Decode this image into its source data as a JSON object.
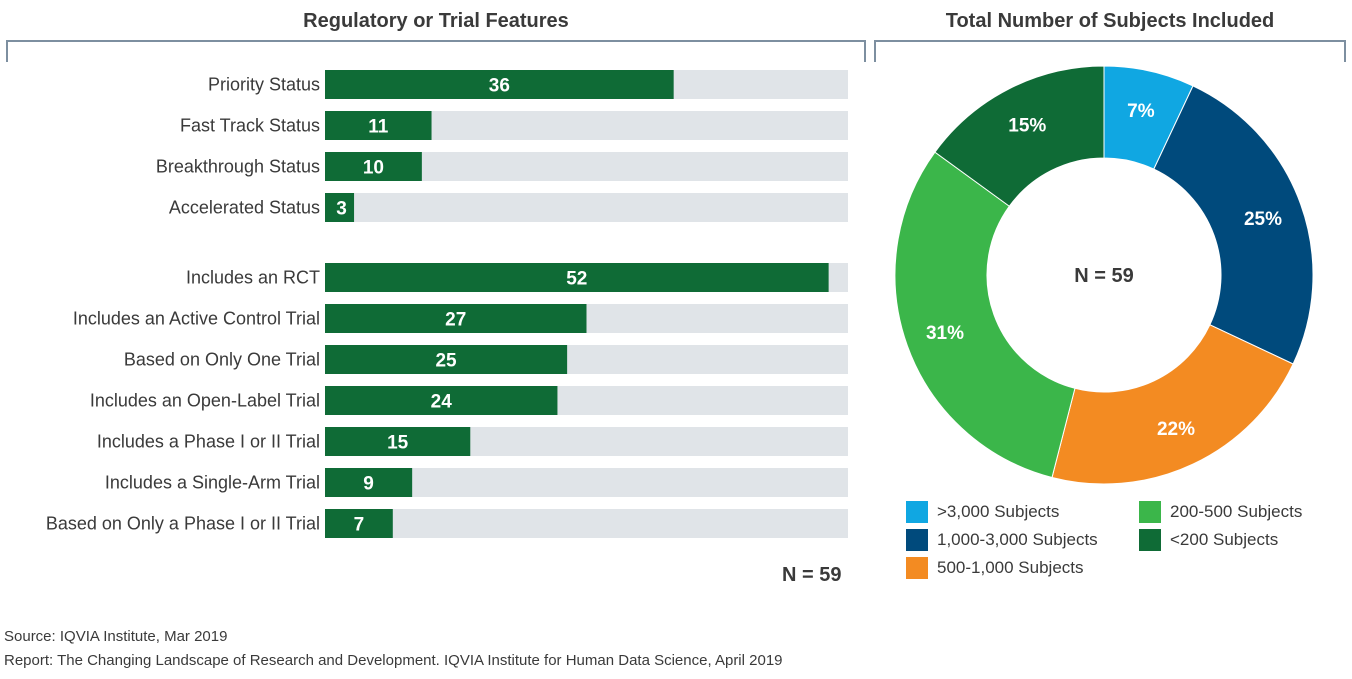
{
  "chart_data": [
    {
      "type": "bar",
      "title": "Regulatory or Trial Features",
      "categories": [
        "Priority Status",
        "Fast Track Status",
        "Breakthrough Status",
        "Accelerated Status",
        "Includes an RCT",
        "Includes an Active Control Trial",
        "Based on Only One Trial",
        "Includes an Open-Label Trial",
        "Includes a Phase I or II Trial",
        "Includes a Single-Arm Trial",
        "Based on Only a Phase I or II Trial"
      ],
      "values": [
        36,
        11,
        10,
        3,
        52,
        27,
        25,
        24,
        15,
        9,
        7
      ],
      "xlim": [
        0,
        54
      ],
      "note": "N = 59",
      "colors": {
        "bar": "#0f6b36",
        "track": "#e0e4e8",
        "label": "#ffffff"
      }
    },
    {
      "type": "pie",
      "title": "Total Number of Subjects Included",
      "center_label": "N = 59",
      "slices": [
        {
          "name": ">3,000 Subjects",
          "value": 7,
          "label": "7%",
          "color": "#10a7e2"
        },
        {
          "name": "1,000-3,000 Subjects",
          "value": 25,
          "label": "25%",
          "color": "#004a7c"
        },
        {
          "name": "500-1,000 Subjects",
          "value": 22,
          "label": "22%",
          "color": "#f38b22"
        },
        {
          "name": "200-500 Subjects",
          "value": 31,
          "label": "31%",
          "color": "#3bb64a"
        },
        {
          "name": "<200 Subjects",
          "value": 15,
          "label": "15%",
          "color": "#0f6b36"
        }
      ]
    }
  ],
  "footer": {
    "source": "Source: IQVIA Institute, Mar 2019",
    "report": "Report: The Changing Landscape of Research and Development. IQVIA Institute for Human Data Science, April 2019"
  }
}
